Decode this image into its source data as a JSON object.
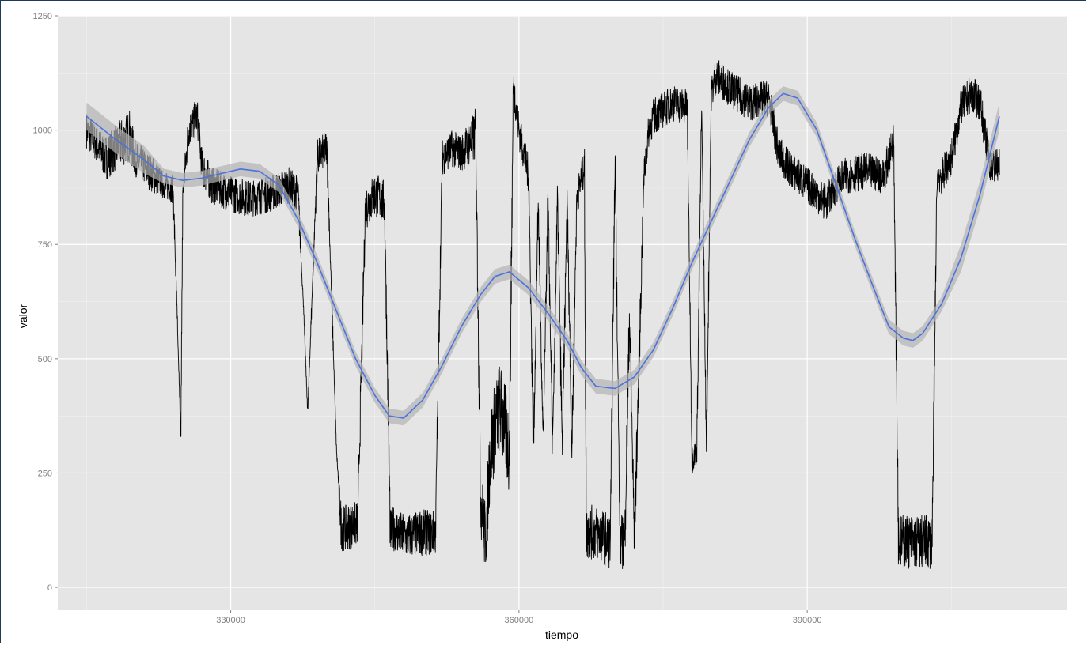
{
  "chart_data": {
    "type": "line",
    "title": "",
    "xlabel": "tiempo",
    "ylabel": "valor",
    "xlim": [
      312000,
      417000
    ],
    "ylim": [
      -50,
      1250
    ],
    "x_ticks": [
      330000,
      360000,
      390000
    ],
    "x_tick_labels": [
      "330000",
      "360000",
      "390000"
    ],
    "y_ticks": [
      0,
      250,
      500,
      750,
      1000,
      1250
    ],
    "y_tick_labels": [
      "0",
      "250",
      "500",
      "750",
      "1000",
      "1250"
    ],
    "grid": true,
    "legend": "none",
    "colors": {
      "panel": "#e5e5e5",
      "grid": "#ffffff",
      "raw_series": "#000000",
      "smooth": "#4a72e0",
      "ribbon": "#b3b3b3"
    },
    "series": [
      {
        "kind": "raw",
        "x": [
          315000,
          316000,
          317000,
          318000,
          319500,
          320000,
          321000,
          322000,
          323000,
          324000,
          324800,
          325000,
          325600,
          326500,
          327000,
          328000,
          330000,
          332000,
          334000,
          336000,
          337000,
          337600,
          338000,
          339000,
          340000,
          341000,
          341500,
          342000,
          343200,
          344000,
          345000,
          346000,
          346600,
          347000,
          348000,
          350000,
          351300,
          352000,
          353000,
          354000,
          355500,
          356000,
          356500,
          357000,
          358000,
          359000,
          359400,
          360000,
          361000,
          361500,
          362000,
          362500,
          363000,
          363500,
          364000,
          364500,
          365000,
          365500,
          366000,
          366800,
          367000,
          368000,
          369500,
          370000,
          370500,
          371000,
          371500,
          372000,
          373000,
          373500,
          374000,
          376000,
          377500,
          378000,
          378500,
          379000,
          379500,
          380000,
          380500,
          381000,
          382000,
          384000,
          386000,
          387000,
          388000,
          390000,
          392000,
          393000,
          394000,
          396000,
          398000,
          399000,
          399500,
          400000,
          401000,
          402000,
          403000,
          403500,
          404000,
          405000,
          406000,
          407000,
          408000,
          409000,
          410000
        ],
        "y_mid": [
          1000,
          970,
          940,
          960,
          990,
          940,
          920,
          900,
          880,
          870,
          330,
          860,
          1000,
          1030,
          920,
          880,
          860,
          850,
          860,
          880,
          860,
          600,
          380,
          940,
          960,
          300,
          130,
          130,
          140,
          830,
          860,
          840,
          120,
          130,
          110,
          120,
          120,
          940,
          960,
          950,
          990,
          200,
          100,
          300,
          400,
          300,
          1100,
          1000,
          900,
          300,
          850,
          300,
          850,
          300,
          850,
          300,
          850,
          300,
          850,
          920,
          120,
          120,
          100,
          950,
          100,
          100,
          600,
          100,
          900,
          1000,
          1030,
          1060,
          1050,
          280,
          300,
          1050,
          300,
          1080,
          1120,
          1110,
          1090,
          1060,
          1070,
          950,
          920,
          880,
          840,
          880,
          900,
          910,
          900,
          980,
          100,
          100,
          100,
          100,
          100,
          900,
          900,
          940,
          1050,
          1080,
          1060,
          920,
          920
        ],
        "y_spread": [
          40,
          40,
          50,
          50,
          60,
          40,
          40,
          40,
          30,
          30,
          0,
          30,
          40,
          40,
          40,
          40,
          40,
          40,
          40,
          40,
          40,
          0,
          0,
          40,
          40,
          0,
          50,
          50,
          50,
          50,
          50,
          50,
          50,
          50,
          50,
          50,
          50,
          40,
          40,
          40,
          60,
          80,
          80,
          100,
          100,
          100,
          40,
          40,
          40,
          50,
          40,
          50,
          40,
          50,
          40,
          50,
          40,
          50,
          40,
          40,
          60,
          60,
          60,
          40,
          60,
          60,
          60,
          60,
          40,
          40,
          40,
          40,
          40,
          30,
          30,
          40,
          30,
          40,
          40,
          40,
          40,
          40,
          40,
          40,
          40,
          40,
          40,
          40,
          40,
          40,
          40,
          40,
          60,
          60,
          60,
          60,
          60,
          40,
          40,
          40,
          40,
          40,
          40,
          40,
          40
        ]
      },
      {
        "kind": "smooth",
        "x": [
          315000,
          318000,
          321000,
          323000,
          325000,
          327000,
          329000,
          331000,
          333000,
          335000,
          337000,
          339000,
          341000,
          343000,
          345000,
          346500,
          348000,
          350000,
          352000,
          354000,
          356000,
          357500,
          359000,
          361000,
          363000,
          365000,
          366500,
          368000,
          370000,
          372000,
          374000,
          376000,
          378000,
          380000,
          382000,
          384000,
          386000,
          387500,
          389000,
          391000,
          393000,
          395000,
          397000,
          398500,
          400000,
          401000,
          402000,
          404000,
          406000,
          408000,
          410000
        ],
        "y": [
          1030,
          980,
          935,
          900,
          890,
          895,
          905,
          915,
          910,
          880,
          805,
          710,
          605,
          500,
          420,
          375,
          370,
          410,
          485,
          570,
          640,
          680,
          690,
          655,
          600,
          540,
          480,
          440,
          435,
          460,
          520,
          610,
          710,
          800,
          890,
          980,
          1050,
          1080,
          1070,
          1000,
          880,
          760,
          650,
          570,
          545,
          540,
          555,
          620,
          720,
          860,
          1030
        ]
      }
    ]
  }
}
